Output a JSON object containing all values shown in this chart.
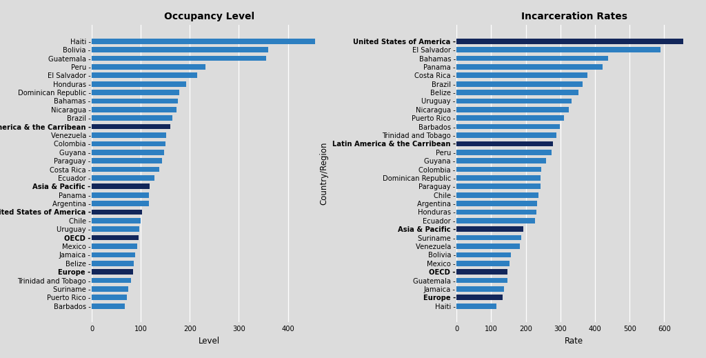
{
  "occupancy": {
    "labels": [
      "Haiti",
      "Bolivia",
      "Guatemala",
      "Peru",
      "El Salvador",
      "Honduras",
      "Dominican Republic",
      "Bahamas",
      "Nicaragua",
      "Brazil",
      "Latin America & the Carribean",
      "Venezuela",
      "Colombia",
      "Guyana",
      "Paraguay",
      "Costa Rica",
      "Ecuador",
      "Asia & Pacific",
      "Panama",
      "Argentina",
      "United States of America",
      "Chile",
      "Uruguay",
      "OECD",
      "Mexico",
      "Jamaica",
      "Belize",
      "Europe",
      "Trinidad and Tobago",
      "Suriname",
      "Puerto Rico",
      "Barbados"
    ],
    "values": [
      455,
      360,
      355,
      232,
      215,
      192,
      178,
      175,
      173,
      165,
      160,
      152,
      150,
      148,
      143,
      138,
      128,
      118,
      117,
      116,
      103,
      99,
      97,
      96,
      92,
      89,
      86,
      84,
      80,
      75,
      72,
      68
    ],
    "is_region": [
      false,
      false,
      false,
      false,
      false,
      false,
      false,
      false,
      false,
      false,
      true,
      false,
      false,
      false,
      false,
      false,
      false,
      true,
      false,
      false,
      true,
      false,
      false,
      true,
      false,
      false,
      false,
      true,
      false,
      false,
      false,
      false
    ]
  },
  "incarceration": {
    "labels": [
      "United States of America",
      "El Salvador",
      "Bahamas",
      "Panama",
      "Costa Rica",
      "Brazil",
      "Belize",
      "Uruguay",
      "Nicaragua",
      "Puerto Rico",
      "Barbados",
      "Trinidad and Tobago",
      "Latin America & the Carribean",
      "Peru",
      "Guyana",
      "Colombia",
      "Dominican Republic",
      "Paraguay",
      "Chile",
      "Argentina",
      "Honduras",
      "Ecuador",
      "Asia & Pacific",
      "Suriname",
      "Venezuela",
      "Bolivia",
      "Mexico",
      "OECD",
      "Guatemala",
      "Jamaica",
      "Europe",
      "Haiti"
    ],
    "values": [
      655,
      590,
      438,
      422,
      378,
      365,
      352,
      332,
      325,
      310,
      298,
      288,
      278,
      275,
      258,
      245,
      243,
      242,
      237,
      233,
      230,
      226,
      192,
      187,
      183,
      158,
      153,
      148,
      147,
      138,
      134,
      115
    ],
    "is_region": [
      true,
      false,
      false,
      false,
      false,
      false,
      false,
      false,
      false,
      false,
      false,
      false,
      true,
      false,
      false,
      false,
      false,
      false,
      false,
      false,
      false,
      false,
      true,
      false,
      false,
      false,
      false,
      true,
      false,
      false,
      true,
      false
    ]
  },
  "country_color": "#2d7fc1",
  "region_color": "#12265a",
  "background_color": "#dcdcdc",
  "grid_color": "#ffffff",
  "title_fontsize": 10,
  "label_fontsize": 7.2,
  "axis_label_fontsize": 8.5,
  "bar_height": 0.62
}
